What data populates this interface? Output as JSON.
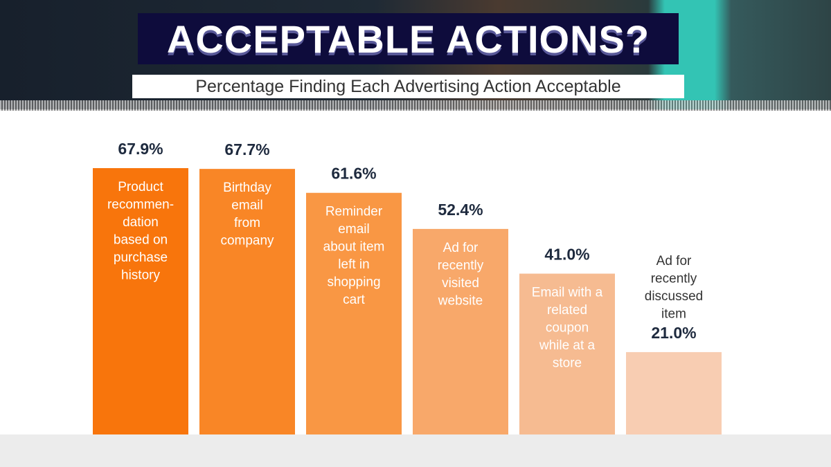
{
  "header": {
    "title": "ACCEPTABLE ACTIONS?",
    "subtitle": "Percentage Finding Each Advertising Action Acceptable"
  },
  "chart_data": {
    "type": "bar",
    "title": "ACCEPTABLE ACTIONS?",
    "subtitle": "Percentage Finding Each Advertising Action Acceptable",
    "categories": [
      "Product\nrecommen-\ndation\nbased on\npurchase\nhistory",
      "Birthday\nemail\nfrom\ncompany",
      "Reminder\nemail\nabout item\nleft in\nshopping\ncart",
      "Ad for\nrecently\nvisited\nwebsite",
      "Email with a\nrelated\ncoupon\nwhile at a\nstore",
      "Ad for\nrecently\ndiscussed\nitem"
    ],
    "values": [
      67.9,
      67.7,
      61.6,
      52.4,
      41.0,
      21.0
    ],
    "value_labels": [
      "67.9%",
      "67.7%",
      "61.6%",
      "52.4%",
      "41.0%",
      "21.0%"
    ],
    "colors": [
      "#f8750c",
      "#f98626",
      "#f99744",
      "#f8a86a",
      "#f6bb91",
      "#f8cdb2"
    ],
    "xlabel": "",
    "ylabel": "",
    "ylim": [
      0,
      100
    ],
    "grid": false,
    "legend": "none"
  }
}
